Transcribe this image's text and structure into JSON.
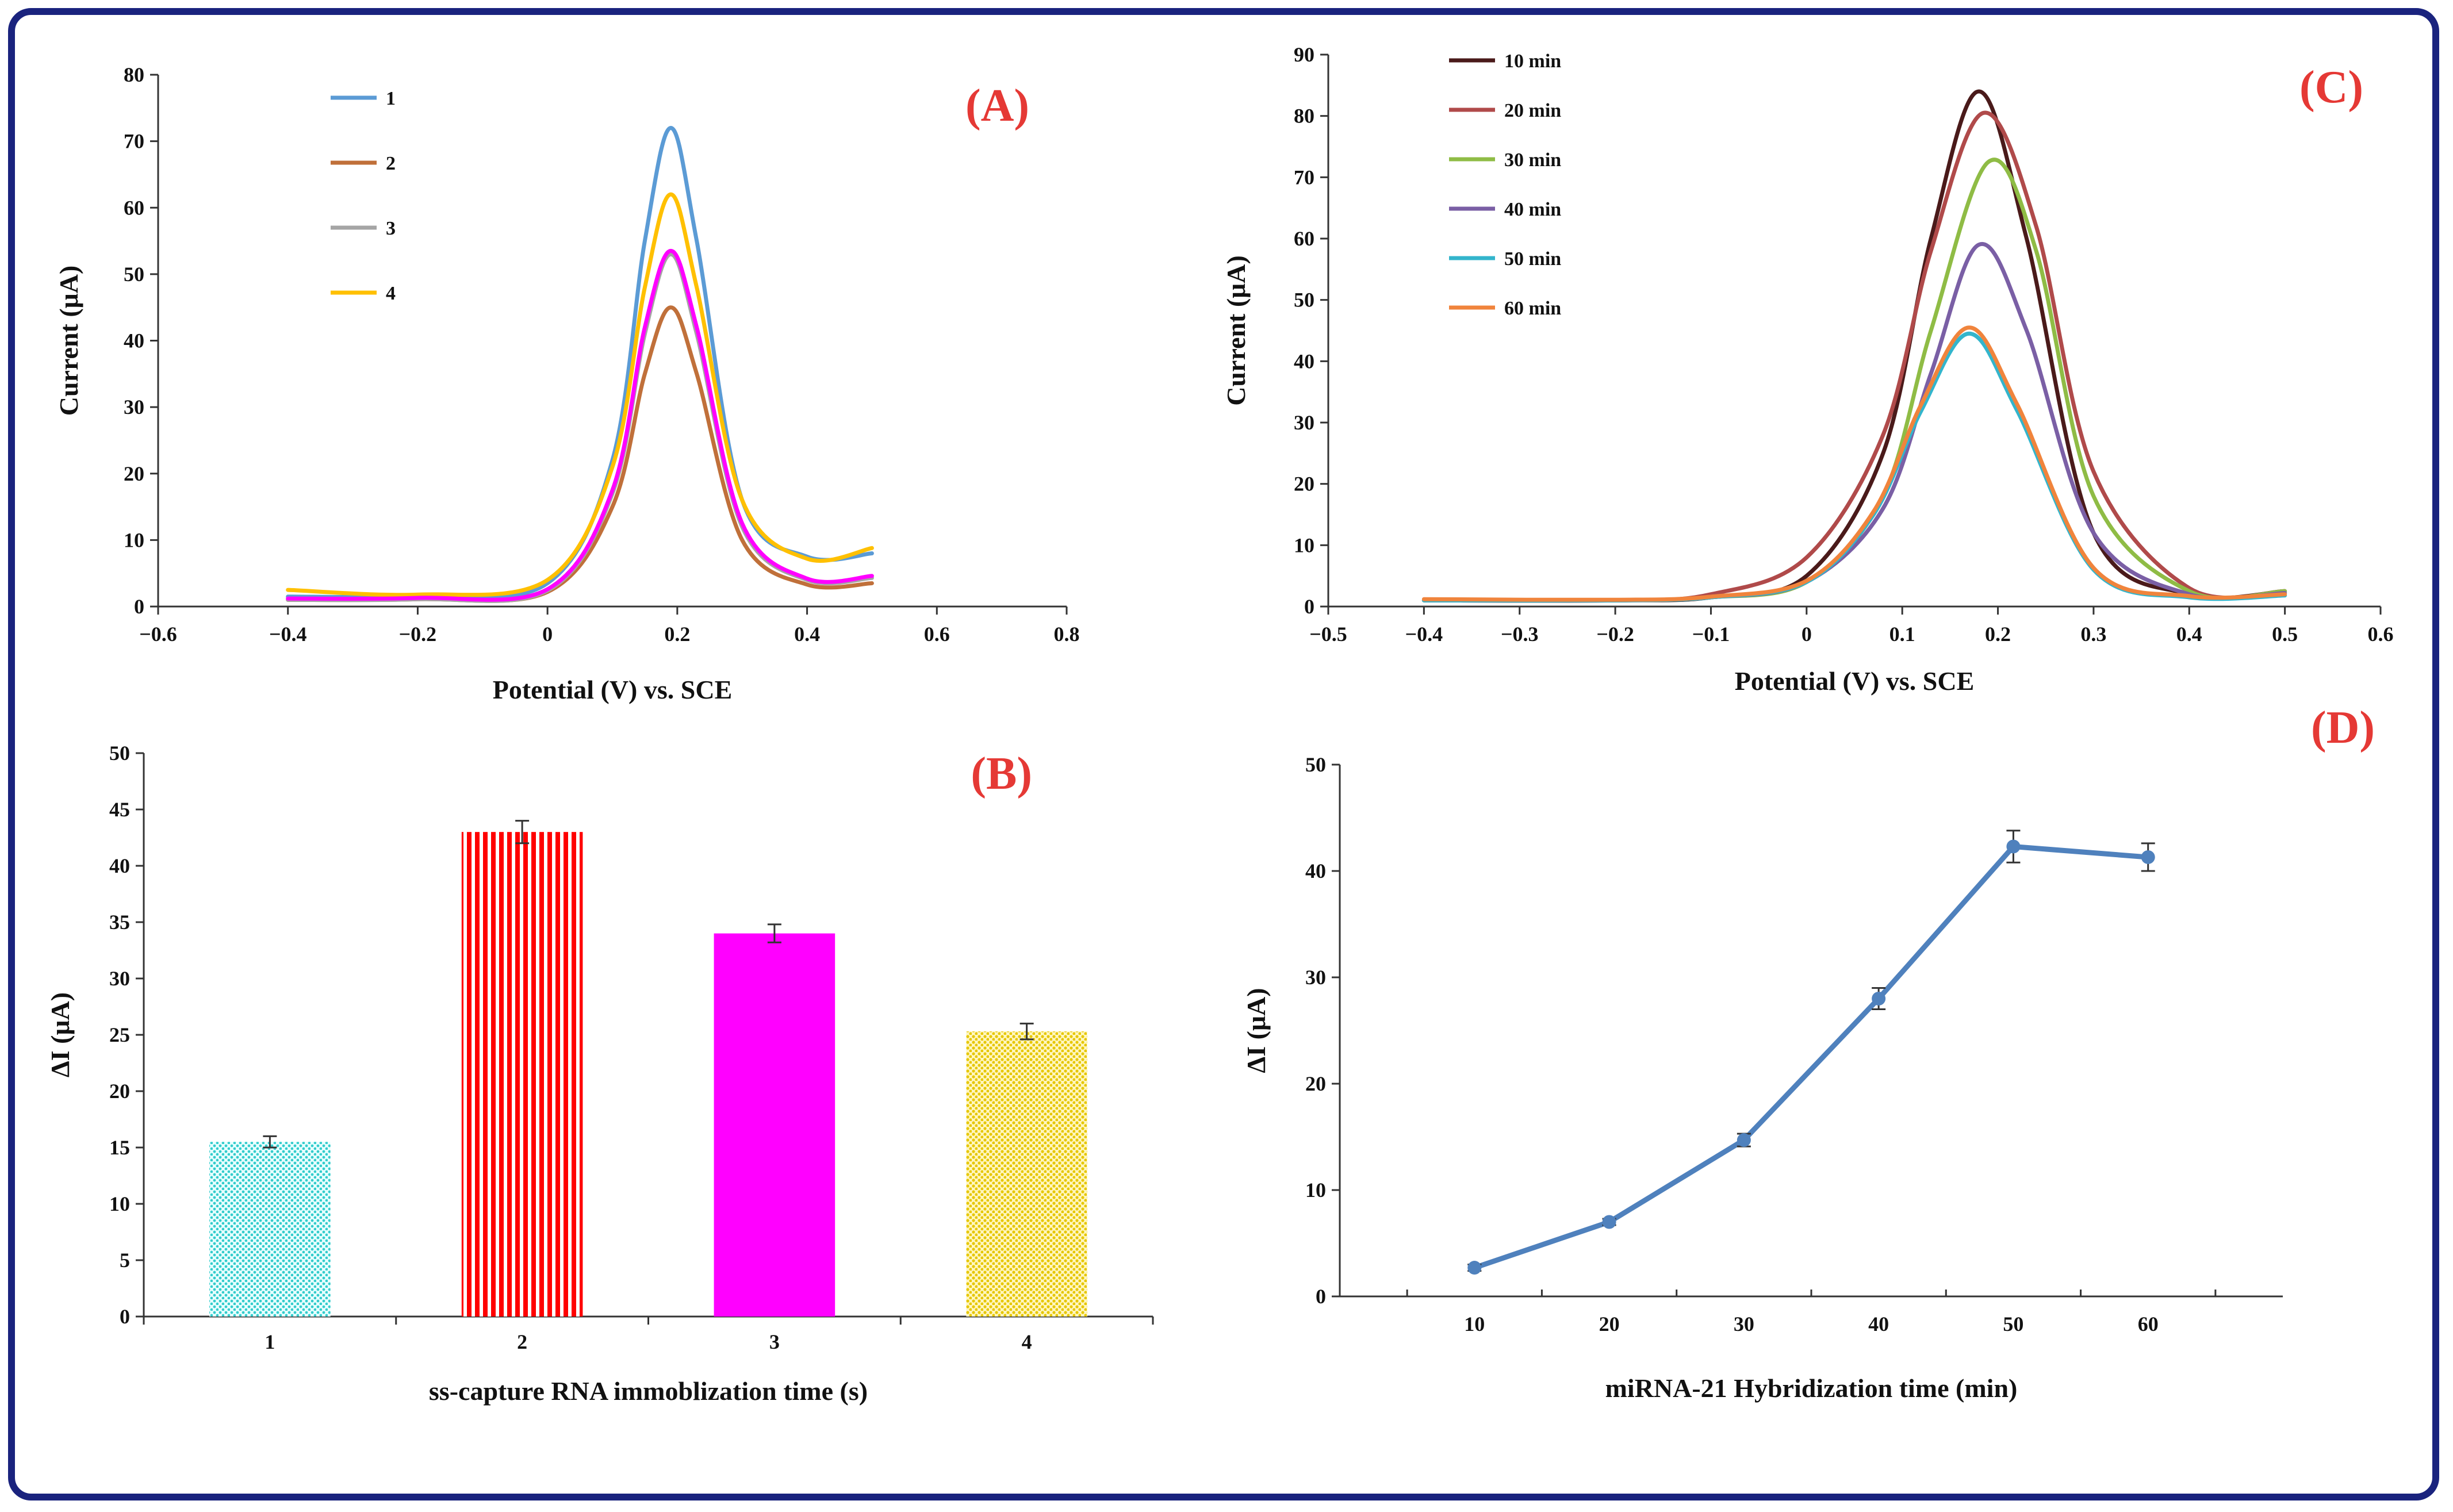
{
  "colors": {
    "frame": "#1a237e",
    "panel_label": "#e53935",
    "axis": "#333333"
  },
  "chart_data": [
    {
      "panel": "(A)",
      "type": "line",
      "xlabel": "Potential (V) vs. SCE",
      "ylabel": "Current  (μA)",
      "xlim": [
        -0.6,
        0.8
      ],
      "ylim": [
        0,
        80
      ],
      "xticks": [
        -0.6,
        -0.4,
        -0.2,
        0,
        0.2,
        0.4,
        0.6,
        0.8
      ],
      "yticks": [
        0,
        10,
        20,
        30,
        40,
        50,
        60,
        70,
        80
      ],
      "legend_position": "top-left",
      "series": [
        {
          "name": "1",
          "color": "#5b9bd5",
          "x": [
            -0.4,
            -0.2,
            0.0,
            0.1,
            0.15,
            0.19,
            0.23,
            0.3,
            0.4,
            0.5
          ],
          "y": [
            1.5,
            1.6,
            3.5,
            22,
            55,
            72,
            55,
            16,
            7.5,
            8
          ]
        },
        {
          "name": "2",
          "color": "#c0703a",
          "x": [
            -0.4,
            -0.2,
            0.0,
            0.1,
            0.15,
            0.19,
            0.23,
            0.3,
            0.4,
            0.5
          ],
          "y": [
            1,
            1.1,
            2.2,
            15,
            35,
            45,
            35,
            10,
            3.3,
            3.5
          ]
        },
        {
          "name": "3",
          "color": "#a5a5a5",
          "x": [
            -0.4,
            -0.2,
            0.0,
            0.1,
            0.15,
            0.19,
            0.23,
            0.3,
            0.4,
            0.5
          ],
          "y": [
            1,
            1.1,
            2.4,
            17,
            41,
            53,
            41,
            12,
            4,
            4.3
          ]
        },
        {
          "name": "4",
          "color": "#ffc000",
          "x": [
            -0.4,
            -0.2,
            0.0,
            0.1,
            0.15,
            0.19,
            0.23,
            0.3,
            0.4,
            0.5
          ],
          "y": [
            2.5,
            1.8,
            4,
            21,
            48,
            62,
            48,
            16,
            7.2,
            8.8
          ]
        },
        {
          "name": "",
          "color": "#ff00ff",
          "x": [
            -0.4,
            -0.2,
            0.0,
            0.1,
            0.15,
            0.19,
            0.23,
            0.3,
            0.4,
            0.5
          ],
          "y": [
            1.2,
            1.3,
            2.6,
            17.5,
            42,
            53.5,
            42,
            12.5,
            4.2,
            4.6
          ]
        }
      ]
    },
    {
      "panel": "(B)",
      "type": "bar",
      "xlabel": "ss-capture RNA immoblization time (s)",
      "ylabel": "ΔI (μA)",
      "ylim": [
        0,
        50
      ],
      "yticks": [
        0,
        5,
        10,
        15,
        20,
        25,
        30,
        35,
        40,
        45,
        50
      ],
      "categories": [
        "1",
        "2",
        "3",
        "4"
      ],
      "values": [
        15.5,
        43,
        34,
        25.3
      ],
      "errors": [
        0.5,
        1.0,
        0.8,
        0.7
      ],
      "colors": [
        "#33cccc",
        "#ff0000",
        "#ff00ff",
        "#e6c700"
      ],
      "patterns": [
        "dots",
        "stripes",
        "solid",
        "dots"
      ]
    },
    {
      "panel": "(C)",
      "type": "line",
      "xlabel": "Potential (V)  vs. SCE",
      "ylabel": "Current  (μA)",
      "xlim": [
        -0.5,
        0.6
      ],
      "ylim": [
        0,
        90
      ],
      "xticks": [
        -0.5,
        -0.4,
        -0.3,
        -0.2,
        -0.1,
        0,
        0.1,
        0.2,
        0.3,
        0.4,
        0.5,
        0.6
      ],
      "yticks": [
        0,
        10,
        20,
        30,
        40,
        50,
        60,
        70,
        80,
        90
      ],
      "legend_position": "top-left",
      "series": [
        {
          "name": "10 min",
          "color": "#4a1a1a",
          "x": [
            -0.4,
            -0.2,
            -0.1,
            0.0,
            0.08,
            0.13,
            0.18,
            0.23,
            0.3,
            0.4,
            0.5
          ],
          "y": [
            1,
            1,
            1.5,
            5,
            25,
            60,
            84,
            60,
            12,
            2,
            2.5
          ]
        },
        {
          "name": "20 min",
          "color": "#b04a4a",
          "x": [
            -0.4,
            -0.2,
            -0.1,
            0.0,
            0.08,
            0.13,
            0.185,
            0.24,
            0.3,
            0.4,
            0.5
          ],
          "y": [
            1,
            1,
            2,
            8,
            28,
            58,
            80.5,
            62,
            22,
            3,
            2.5
          ]
        },
        {
          "name": "30 min",
          "color": "#8fbc45",
          "x": [
            -0.4,
            -0.2,
            -0.1,
            0.0,
            0.08,
            0.13,
            0.19,
            0.24,
            0.3,
            0.4,
            0.5
          ],
          "y": [
            1,
            1,
            1.5,
            4,
            18,
            45,
            72.5,
            58,
            18,
            2.5,
            2.5
          ]
        },
        {
          "name": "40 min",
          "color": "#7a5fa5",
          "x": [
            -0.4,
            -0.2,
            -0.1,
            0.0,
            0.08,
            0.13,
            0.18,
            0.23,
            0.3,
            0.4,
            0.5
          ],
          "y": [
            1,
            1,
            1.5,
            4,
            16,
            38,
            59,
            45,
            12,
            2,
            2.2
          ]
        },
        {
          "name": "50 min",
          "color": "#33b5cc",
          "x": [
            -0.4,
            -0.2,
            -0.1,
            0.0,
            0.07,
            0.12,
            0.17,
            0.22,
            0.3,
            0.4,
            0.5
          ],
          "y": [
            1,
            1,
            1.5,
            4,
            15,
            32,
            44.5,
            32,
            6,
            1.5,
            1.8
          ]
        },
        {
          "name": "60 min",
          "color": "#f0843c",
          "x": [
            -0.4,
            -0.2,
            -0.1,
            0.0,
            0.07,
            0.12,
            0.17,
            0.22,
            0.3,
            0.4,
            0.5
          ],
          "y": [
            1.2,
            1.1,
            1.6,
            4.2,
            15.5,
            33,
            45.5,
            33,
            6.3,
            1.7,
            2
          ]
        }
      ]
    },
    {
      "panel": "(D)",
      "type": "line",
      "xlabel": "miRNA-21 Hybridization time (min)",
      "ylabel": "ΔI (μA)",
      "xlim": [
        0,
        70
      ],
      "ylim": [
        0,
        50
      ],
      "xticks": [
        10,
        20,
        30,
        40,
        50,
        60
      ],
      "yticks": [
        0,
        10,
        20,
        30,
        40,
        50
      ],
      "series": [
        {
          "name": "ΔI",
          "color": "#4f81bd",
          "x": [
            10,
            20,
            30,
            40,
            50,
            60
          ],
          "y": [
            2.7,
            7,
            14.7,
            28,
            42.3,
            41.3
          ],
          "errors": [
            0.3,
            0.3,
            0.6,
            1.0,
            1.5,
            1.3
          ]
        }
      ]
    }
  ]
}
